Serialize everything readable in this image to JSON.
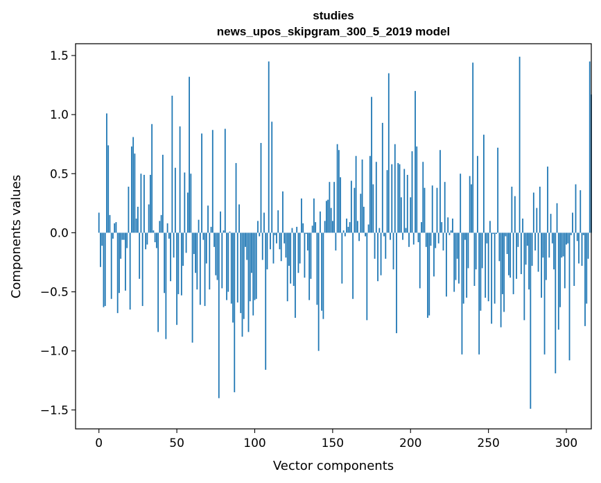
{
  "chart_data": {
    "type": "bar",
    "title_lines": [
      "studies",
      "news_upos_skipgram_300_5_2019 model"
    ],
    "xlabel": "Vector components",
    "ylabel": "Components values",
    "xlim": [
      -15,
      316
    ],
    "ylim": [
      -1.66,
      1.6
    ],
    "xticks": [
      0,
      50,
      100,
      150,
      200,
      250,
      300
    ],
    "xtick_labels": [
      "0",
      "50",
      "100",
      "150",
      "200",
      "250",
      "300"
    ],
    "yticks": [
      -1.5,
      -1.0,
      -0.5,
      0.0,
      0.5,
      1.0,
      1.5
    ],
    "ytick_labels": [
      "−1.5",
      "−1.0",
      "−0.5",
      "0.0",
      "0.5",
      "1.0",
      "1.5"
    ],
    "bar_color": "#1f77b4",
    "grid": false,
    "values": [
      0.17,
      -0.29,
      -0.11,
      -0.63,
      -0.62,
      1.01,
      0.74,
      0.15,
      -0.56,
      -0.05,
      0.08,
      0.09,
      -0.68,
      -0.51,
      -0.22,
      -0.06,
      -0.06,
      -0.49,
      -0.13,
      0.39,
      -0.65,
      0.73,
      0.81,
      0.67,
      0.12,
      0.22,
      -0.39,
      0.5,
      -0.62,
      0.49,
      -0.14,
      -0.1,
      0.24,
      0.49,
      0.92,
      0.02,
      -0.08,
      -0.13,
      -0.84,
      0.1,
      0.15,
      0.66,
      -0.51,
      -0.9,
      0.08,
      -0.05,
      -0.41,
      1.16,
      -0.21,
      0.55,
      -0.78,
      -0.52,
      0.9,
      -0.53,
      -0.28,
      0.51,
      -0.17,
      0.34,
      1.32,
      0.5,
      -0.93,
      -0.18,
      -0.34,
      -0.48,
      0.11,
      -0.61,
      0.84,
      -0.06,
      -0.62,
      -0.26,
      0.23,
      -0.48,
      0.05,
      0.87,
      -0.12,
      -0.36,
      -0.4,
      -1.4,
      0.18,
      -0.47,
      0.02,
      0.88,
      -0.57,
      -0.5,
      0.01,
      -0.6,
      -0.76,
      -1.35,
      0.59,
      -0.59,
      0.24,
      -0.68,
      -0.88,
      -0.73,
      -0.12,
      -0.23,
      -0.84,
      -0.58,
      -0.34,
      -0.7,
      -0.57,
      -0.56,
      0.1,
      -0.03,
      0.76,
      -0.23,
      0.17,
      -1.16,
      -0.31,
      1.45,
      -0.14,
      0.94,
      -0.26,
      -0.02,
      -0.09,
      0.19,
      -0.14,
      -0.24,
      0.35,
      -0.09,
      -0.21,
      -0.58,
      -0.28,
      -0.43,
      0.04,
      -0.45,
      -0.72,
      0.05,
      -0.34,
      -0.26,
      0.29,
      0.08,
      -0.38,
      -0.01,
      -0.15,
      -0.57,
      -0.39,
      0.06,
      0.29,
      0.09,
      -0.61,
      -1.0,
      0.18,
      -0.66,
      -0.73,
      0.1,
      0.27,
      0.28,
      0.43,
      0.21,
      0.1,
      0.43,
      -0.15,
      0.75,
      0.7,
      0.47,
      -0.43,
      0.02,
      -0.03,
      0.12,
      0.05,
      0.09,
      0.44,
      -0.56,
      0.38,
      0.65,
      0.1,
      -0.07,
      0.33,
      0.62,
      0.22,
      -0.03,
      -0.74,
      0.07,
      0.65,
      1.15,
      0.41,
      -0.22,
      0.6,
      -0.41,
      0.04,
      -0.36,
      0.93,
      -0.03,
      -0.22,
      0.53,
      1.35,
      -0.06,
      0.58,
      -0.31,
      0.75,
      -0.85,
      0.59,
      0.58,
      0.3,
      -0.06,
      0.54,
      0.04,
      0.49,
      -0.12,
      0.3,
      0.69,
      -0.1,
      1.2,
      0.73,
      -0.08,
      -0.47,
      0.09,
      0.6,
      0.38,
      -0.12,
      -0.72,
      -0.7,
      -0.11,
      0.4,
      -0.37,
      -0.13,
      0.38,
      -0.09,
      0.7,
      0.09,
      -0.15,
      0.43,
      -0.54,
      0.13,
      -0.02,
      0.02,
      0.12,
      -0.5,
      -0.4,
      -0.22,
      -0.43,
      0.5,
      -1.03,
      -0.6,
      -0.06,
      -0.55,
      -0.3,
      0.48,
      0.41,
      1.44,
      -0.45,
      -0.31,
      0.65,
      -1.03,
      -0.66,
      -0.3,
      0.83,
      -0.55,
      -0.09,
      -0.58,
      0.1,
      -0.77,
      -0.01,
      -0.6,
      -0.01,
      0.72,
      -0.24,
      -0.8,
      -0.52,
      -0.67,
      -0.03,
      -0.18,
      -0.36,
      -0.38,
      0.39,
      -0.52,
      0.31,
      -0.39,
      -0.12,
      1.49,
      -0.35,
      0.12,
      -0.74,
      -0.27,
      -0.11,
      -0.48,
      -1.49,
      -0.28,
      0.34,
      -0.15,
      0.21,
      -0.33,
      0.39,
      -0.55,
      -0.21,
      -1.03,
      -0.4,
      0.56,
      -0.21,
      0.16,
      -0.09,
      -0.31,
      -1.19,
      0.25,
      -0.82,
      -0.63,
      -0.21,
      -0.2,
      -0.47,
      -0.1,
      -0.09,
      -1.08,
      -0.02,
      0.17,
      -0.45,
      0.41,
      -0.07,
      -0.26,
      0.36,
      -0.28,
      -0.02,
      -0.79,
      -0.6,
      -0.22,
      1.45,
      1.17
    ]
  }
}
